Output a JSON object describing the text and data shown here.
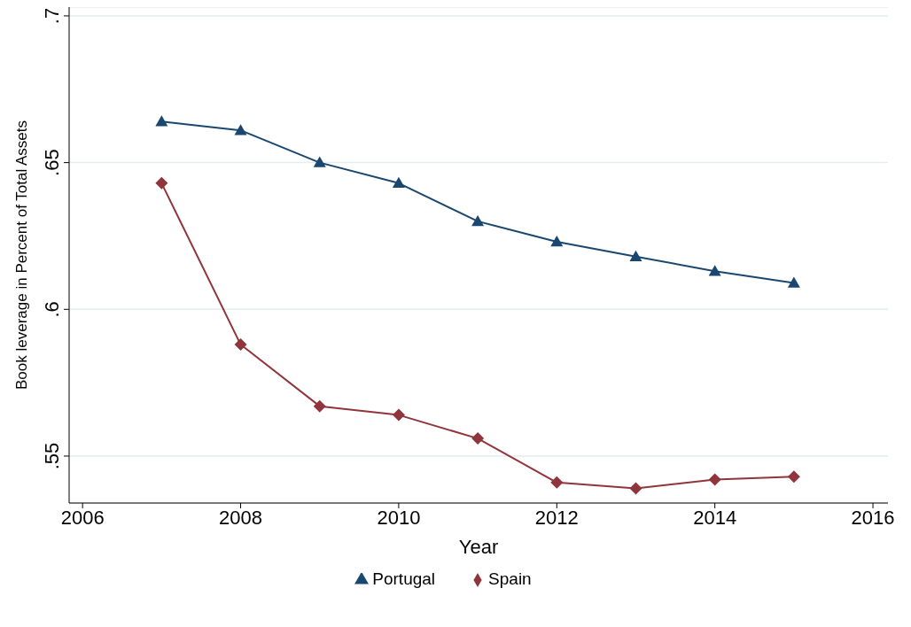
{
  "chart_data": {
    "type": "line",
    "xlabel": "Year",
    "ylabel": "Book leverage in Percent of Total Assets",
    "x": [
      2007,
      2008,
      2009,
      2010,
      2011,
      2012,
      2013,
      2014,
      2015
    ],
    "series": [
      {
        "name": "Portugal",
        "color": "#1a476f",
        "marker": "triangle",
        "values": [
          0.664,
          0.661,
          0.65,
          0.643,
          0.63,
          0.623,
          0.618,
          0.613,
          0.609
        ]
      },
      {
        "name": "Spain",
        "color": "#90353b",
        "marker": "diamond",
        "values": [
          0.643,
          0.588,
          0.567,
          0.564,
          0.556,
          0.541,
          0.539,
          0.542,
          0.543
        ]
      }
    ],
    "xlim": [
      2005.83,
      2016.19
    ],
    "xticks": [
      2006,
      2008,
      2010,
      2012,
      2014,
      2016
    ],
    "ylim": [
      0.534,
      0.703
    ],
    "yticks": [
      {
        "value": 0.55,
        "label": ".55"
      },
      {
        "value": 0.6,
        "label": ".6"
      },
      {
        "value": 0.65,
        "label": ".65"
      },
      {
        "value": 0.7,
        "label": ".7"
      }
    ],
    "grid": "y",
    "legend": "bottom",
    "line_style": "solid"
  }
}
